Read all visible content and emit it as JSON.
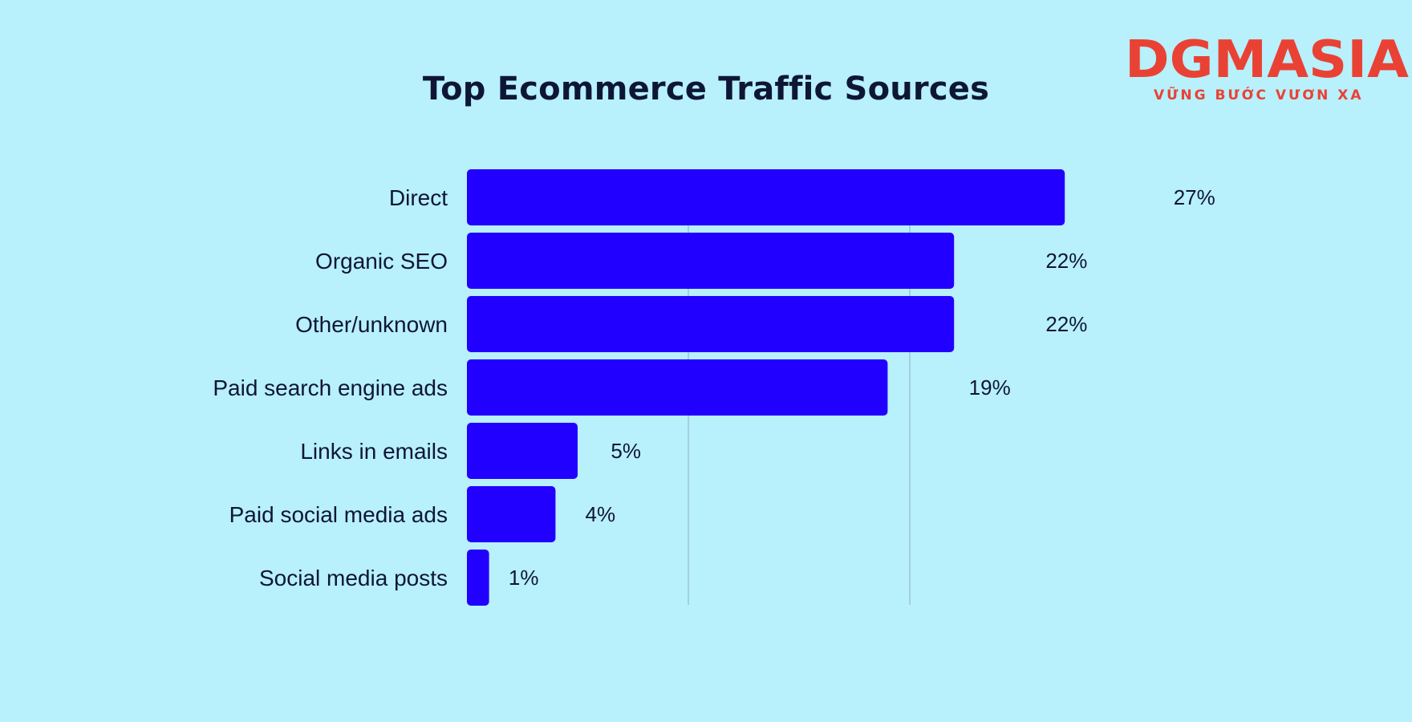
{
  "brand": {
    "logo_text": "DGMASIA",
    "tagline": "VỮNG BƯỚC VƯƠN XA",
    "color": "#e94234"
  },
  "chart_data": {
    "type": "bar",
    "orientation": "horizontal",
    "title": "Top Ecommerce Traffic Sources",
    "categories": [
      "Direct",
      "Organic SEO",
      "Other/unknown",
      "Paid search engine ads",
      "Links in emails",
      "Paid social media ads",
      "Social media posts"
    ],
    "values": [
      27,
      22,
      22,
      19,
      5,
      4,
      1
    ],
    "value_labels": [
      "27%",
      "22%",
      "22%",
      "19%",
      "5%",
      "4%",
      "1%"
    ],
    "xlim": [
      0,
      30
    ],
    "gridlines_at": [
      10,
      20
    ],
    "grid": true,
    "xlabel": "",
    "ylabel": "",
    "legend": "none",
    "colors": {
      "bar": "#2200ff",
      "grid": "#9cc4d6",
      "text": "#0e1636",
      "background": "#b8f0fc"
    }
  }
}
